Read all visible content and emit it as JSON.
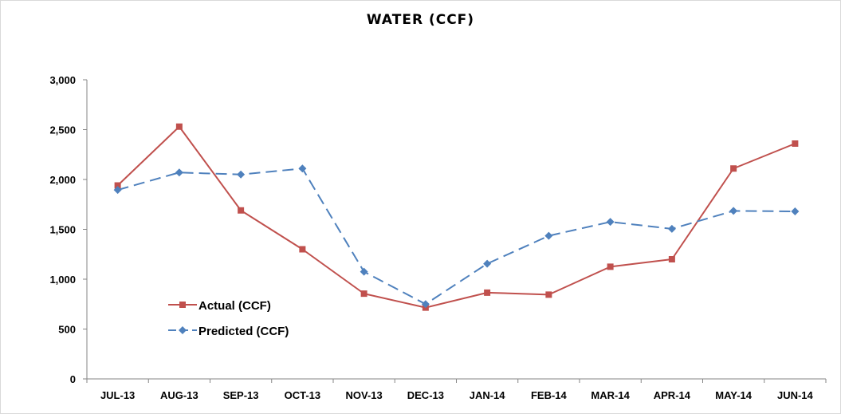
{
  "chart_data": {
    "type": "line",
    "title": "WATER (CCF)",
    "xlabel": "",
    "ylabel": "",
    "categories": [
      "JUL-13",
      "AUG-13",
      "SEP-13",
      "OCT-13",
      "NOV-13",
      "DEC-13",
      "JAN-14",
      "FEB-14",
      "MAR-14",
      "APR-14",
      "MAY-14",
      "JUN-14"
    ],
    "ylim": [
      0,
      3000
    ],
    "yticks": [
      0,
      500,
      1000,
      1500,
      2000,
      2500,
      3000
    ],
    "ytick_labels": [
      "0",
      "500",
      "1,000",
      "1,500",
      "2,000",
      "2,500",
      "3,000"
    ],
    "grid": false,
    "legend_position": "bottom-left",
    "series": [
      {
        "name": "Actual (CCF)",
        "color": "#c0504d",
        "marker": "square",
        "dash": "solid",
        "values": [
          1940,
          2530,
          1690,
          1300,
          855,
          715,
          865,
          845,
          1125,
          1200,
          2110,
          2360
        ]
      },
      {
        "name": "Predicted (CCF)",
        "color": "#4f81bd",
        "marker": "diamond",
        "dash": "dashed",
        "values": [
          1895,
          2070,
          2050,
          2110,
          1075,
          750,
          1155,
          1435,
          1575,
          1505,
          1685,
          1680
        ]
      }
    ]
  }
}
